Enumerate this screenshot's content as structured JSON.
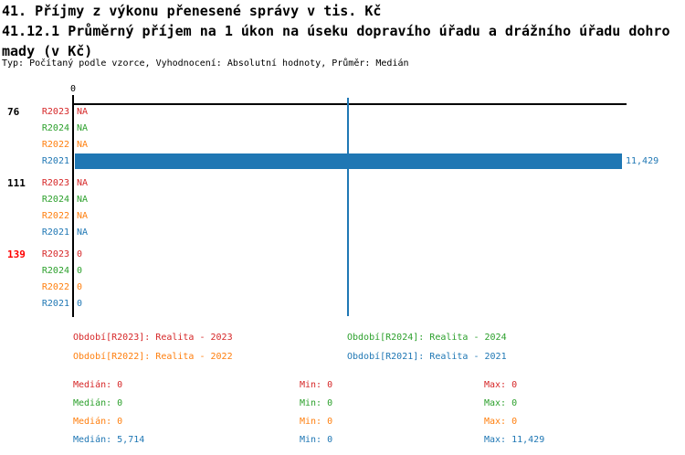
{
  "header": {
    "title": "41. Příjmy z výkonu přenesené správy v tis. Kč",
    "subtitle_line1": "41.12.1 Průměrný příjem na 1 úkon na úseku dopravího úřadu a drážního úřadu dohro",
    "subtitle_line2": "mady (v Kč)",
    "meta": "Typ: Počítaný podle vzorce, Vyhodnocení: Absolutní hodnoty, Průměr: Medián"
  },
  "colors": {
    "R2023": "#d62728",
    "R2024": "#2ca02c",
    "R2022": "#ff7f0e",
    "R2021": "#1f77b4",
    "group_highlight": "#ff0000",
    "group_normal": "#000000",
    "axis": "#000000",
    "bar": "#1f77b4",
    "median_line": "#1f77b4"
  },
  "chart_data": {
    "type": "bar",
    "orientation": "horizontal",
    "axis_tick_label": "0",
    "axis_min": 0,
    "axis_max": 11429,
    "median_marker_value": 5714,
    "series_order": [
      "R2023",
      "R2024",
      "R2022",
      "R2021"
    ],
    "groups": [
      {
        "label": "76",
        "highlight": false,
        "rows": [
          {
            "series": "R2023",
            "display": "NA",
            "value": null
          },
          {
            "series": "R2024",
            "display": "NA",
            "value": null
          },
          {
            "series": "R2022",
            "display": "NA",
            "value": null
          },
          {
            "series": "R2021",
            "display": "11,429",
            "value": 11429
          }
        ]
      },
      {
        "label": "111",
        "highlight": false,
        "rows": [
          {
            "series": "R2023",
            "display": "NA",
            "value": null
          },
          {
            "series": "R2024",
            "display": "NA",
            "value": null
          },
          {
            "series": "R2022",
            "display": "NA",
            "value": null
          },
          {
            "series": "R2021",
            "display": "NA",
            "value": null
          }
        ]
      },
      {
        "label": "139",
        "highlight": true,
        "rows": [
          {
            "series": "R2023",
            "display": "0",
            "value": 0
          },
          {
            "series": "R2024",
            "display": "0",
            "value": 0
          },
          {
            "series": "R2022",
            "display": "0",
            "value": 0
          },
          {
            "series": "R2021",
            "display": "0",
            "value": 0
          }
        ]
      }
    ]
  },
  "legend": {
    "items": [
      {
        "series": "R2023",
        "text": "Období[R2023]: Realita - 2023"
      },
      {
        "series": "R2024",
        "text": "Období[R2024]: Realita - 2024"
      },
      {
        "series": "R2022",
        "text": "Období[R2022]: Realita - 2022"
      },
      {
        "series": "R2021",
        "text": "Období[R2021]: Realita - 2021"
      }
    ]
  },
  "stats": {
    "median_label": "Medián",
    "min_label": "Min",
    "max_label": "Max",
    "rows": [
      {
        "series": "R2023",
        "median": "0",
        "min": "0",
        "max": "0"
      },
      {
        "series": "R2024",
        "median": "0",
        "min": "0",
        "max": "0"
      },
      {
        "series": "R2022",
        "median": "0",
        "min": "0",
        "max": "0"
      },
      {
        "series": "R2021",
        "median": "5,714",
        "min": "0",
        "max": "11,429"
      }
    ]
  }
}
